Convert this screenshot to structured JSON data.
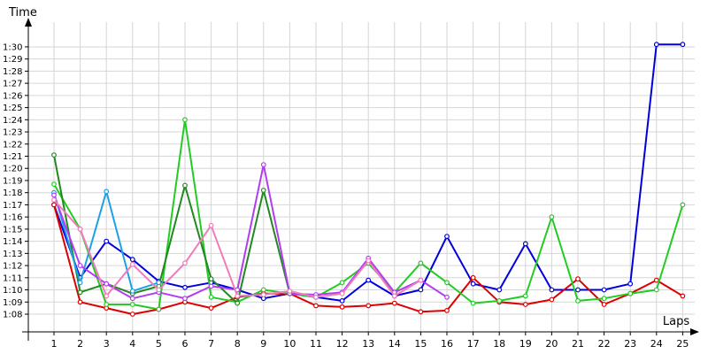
{
  "chart_data": {
    "type": "line",
    "title": "",
    "xlabel": "Laps",
    "ylabel": "Time",
    "grid": true,
    "legend": "none",
    "x": [
      1,
      2,
      3,
      4,
      5,
      6,
      7,
      8,
      9,
      10,
      11,
      12,
      13,
      14,
      15,
      16,
      17,
      18,
      19,
      20,
      21,
      22,
      23,
      24,
      25
    ],
    "y_tick_labels": [
      "1:08",
      "1:09",
      "1:10",
      "1:11",
      "1:12",
      "1:13",
      "1:14",
      "1:15",
      "1:16",
      "1:17",
      "1:18",
      "1:19",
      "1:20",
      "1:21",
      "1:22",
      "1:23",
      "1:24",
      "1:25",
      "1:26",
      "1:27",
      "1:28",
      "1:29",
      "1:30"
    ],
    "ylim_seconds": [
      66,
      92
    ],
    "y_unit": "m:ss",
    "series": [
      {
        "color": "#0000dd",
        "values": [
          "1:17",
          "1:11",
          "1:14",
          "1:12.5",
          "1:10.7",
          "1:10.2",
          "1:10.6",
          "1:10",
          "1:09.3",
          "1:09.7",
          "1:09.4",
          "1:09.1",
          "1:10.8",
          "1:09.5",
          "1:10",
          "1:14.4",
          "1:10.5",
          "1:10",
          "1:13.8",
          "1:10",
          "1:10",
          "1:10",
          "1:10.5",
          "1:30.2",
          "1:30.2"
        ]
      },
      {
        "color": "#dd0000",
        "values": [
          "1:17",
          "1:09",
          "1:08.5",
          "1:08",
          "1:08.4",
          "1:09",
          "1:08.5",
          "1:09.4",
          "1:09.7",
          "1:09.7",
          "1:08.7",
          "1:08.6",
          "1:08.7",
          "1:08.9",
          "1:08.2",
          "1:08.3",
          "1:11",
          "1:09",
          "1:08.8",
          "1:09.2",
          "1:10.9",
          "1:08.8",
          "1:09.7",
          "1:10.8",
          "1:09.5"
        ]
      },
      {
        "color": "#22cc22",
        "values": [
          "1:18.7",
          "1:15",
          "1:08.8",
          "1:08.8",
          "1:08.4",
          "1:24",
          "1:09.4",
          "1:09",
          "1:10",
          "1:09.7",
          "1:09.4",
          "1:10.6",
          "1:12.2",
          "1:09.8",
          "1:12.2",
          "1:10.6",
          "1:08.9",
          "1:09.1",
          "1:09.5",
          "1:16",
          "1:09.1",
          "1:09.3",
          "1:09.7",
          "1:10",
          "1:17"
        ]
      },
      {
        "color": "#228822",
        "values": [
          "1:21.1",
          "1:09.8",
          "1:10.5",
          "1:09.7",
          "1:10.3",
          "1:18.6",
          "1:10.9",
          "1:08.9",
          "1:18.2",
          "1:09.7",
          null,
          null,
          null,
          null,
          null,
          null,
          null,
          null,
          null,
          null,
          null,
          null,
          null,
          null,
          null
        ]
      },
      {
        "color": "#1ea0e8",
        "values": [
          "1:18",
          "1:10.6",
          "1:18.1",
          "1:09.9",
          "1:10.6",
          null,
          null,
          null,
          null,
          null,
          null,
          null,
          null,
          null,
          null,
          null,
          null,
          null,
          null,
          null,
          null,
          null,
          null,
          null,
          null
        ]
      },
      {
        "color": "#b23cf0",
        "values": [
          "1:17.8",
          "1:12",
          "1:10.5",
          "1:09.3",
          "1:09.8",
          "1:09.3",
          "1:10.3",
          "1:10",
          "1:20.3",
          "1:09.7",
          "1:09.6",
          "1:09.8",
          "1:12.6",
          "1:09.8",
          "1:10.8",
          "1:09.4",
          null,
          null,
          null,
          null,
          null,
          null,
          null,
          null,
          null
        ]
      },
      {
        "color": "#f07cbc",
        "values": [
          "1:17.4",
          "1:15",
          "1:09.5",
          "1:12.1",
          "1:10",
          "1:12.2",
          "1:15.3",
          "1:09.5",
          "1:09.6",
          "1:09.9",
          "1:09.4",
          "1:09.7",
          "1:12.4",
          "1:09.5",
          "1:10.8",
          null,
          null,
          null,
          null,
          null,
          null,
          null,
          null,
          null,
          null
        ]
      }
    ]
  }
}
